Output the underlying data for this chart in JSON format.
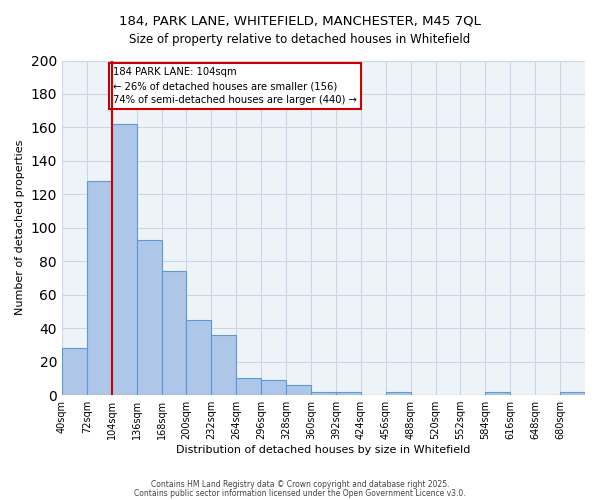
{
  "title_line1": "184, PARK LANE, WHITEFIELD, MANCHESTER, M45 7QL",
  "title_line2": "Size of property relative to detached houses in Whitefield",
  "xlabel": "Distribution of detached houses by size in Whitefield",
  "ylabel": "Number of detached properties",
  "bin_labels": [
    "40sqm",
    "72sqm",
    "104sqm",
    "136sqm",
    "168sqm",
    "200sqm",
    "232sqm",
    "264sqm",
    "296sqm",
    "328sqm",
    "360sqm",
    "392sqm",
    "424sqm",
    "456sqm",
    "488sqm",
    "520sqm",
    "552sqm",
    "584sqm",
    "616sqm",
    "648sqm",
    "680sqm"
  ],
  "bin_edges": [
    40,
    72,
    104,
    136,
    168,
    200,
    232,
    264,
    296,
    328,
    360,
    392,
    424,
    456,
    488,
    520,
    552,
    584,
    616,
    648,
    680
  ],
  "bar_heights": [
    28,
    128,
    162,
    93,
    74,
    45,
    36,
    10,
    9,
    6,
    2,
    2,
    0,
    2,
    0,
    0,
    0,
    2,
    0,
    0,
    2
  ],
  "bar_color": "#aec6e8",
  "bar_edge_color": "#5b9bd5",
  "grid_color": "#c8d8e8",
  "bg_color": "#eef3f8",
  "red_line_x": 104,
  "annotation_title": "184 PARK LANE: 104sqm",
  "annotation_line1": "← 26% of detached houses are smaller (156)",
  "annotation_line2": "74% of semi-detached houses are larger (440) →",
  "annotation_box_color": "#cc0000",
  "ylim": [
    0,
    200
  ],
  "yticks": [
    0,
    20,
    40,
    60,
    80,
    100,
    120,
    140,
    160,
    180,
    200
  ],
  "bin_width": 32,
  "footer_line1": "Contains HM Land Registry data © Crown copyright and database right 2025.",
  "footer_line2": "Contains public sector information licensed under the Open Government Licence v3.0."
}
